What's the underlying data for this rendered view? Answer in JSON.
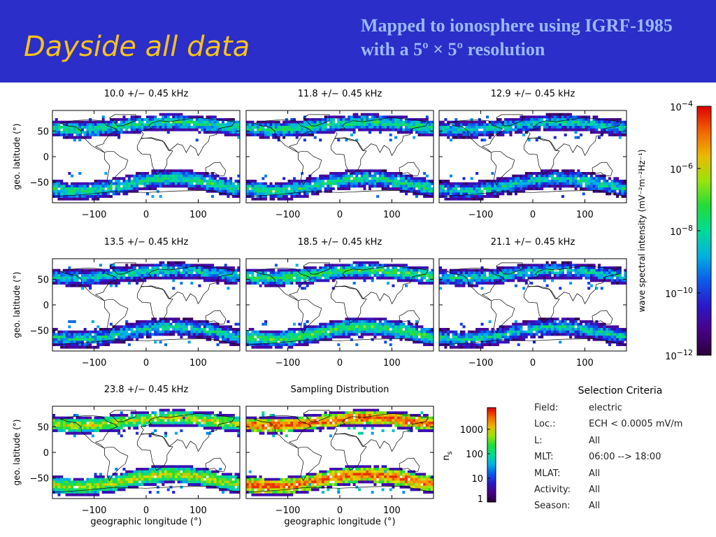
{
  "header": {
    "title": "Dayside all data",
    "subtitle": "Mapped to ionosphere using IGRF-1985 with a 5º × 5º resolution"
  },
  "colors": {
    "header_bg": "#2b2ec8",
    "title": "#f6c21a",
    "subtitle": "#9db8ff"
  },
  "axes": {
    "ylabel": "geo. latitude (°)",
    "xlabel": "geographic longitude (°)",
    "xticks": [
      "−100",
      "0",
      "100"
    ],
    "yticks": [
      "50",
      "0",
      "−50"
    ]
  },
  "chart_data": [
    {
      "type": "heatmap",
      "title": "10.0 +/− 0.45 kHz",
      "xlim": [
        -180,
        180
      ],
      "ylim": [
        -90,
        90
      ],
      "bands": [
        {
          "lat_range": [
            -90,
            -40
          ],
          "peak": "zone"
        },
        {
          "lat_range": [
            40,
            75
          ]
        }
      ],
      "peak_level": 0.55
    },
    {
      "type": "heatmap",
      "title": "11.8 +/− 0.45 kHz",
      "xlim": [
        -180,
        180
      ],
      "ylim": [
        -90,
        90
      ],
      "peak_level": 0.55
    },
    {
      "type": "heatmap",
      "title": "12.9 +/− 0.45 kHz",
      "xlim": [
        -180,
        180
      ],
      "ylim": [
        -90,
        90
      ],
      "peak_level": 0.5
    },
    {
      "type": "heatmap",
      "title": "13.5 +/− 0.45 kHz",
      "xlim": [
        -180,
        180
      ],
      "ylim": [
        -90,
        90
      ],
      "peak_level": 0.5
    },
    {
      "type": "heatmap",
      "title": "18.5 +/− 0.45 kHz",
      "xlim": [
        -180,
        180
      ],
      "ylim": [
        -90,
        90
      ],
      "peak_level": 0.6
    },
    {
      "type": "heatmap",
      "title": "21.1 +/− 0.45 kHz",
      "xlim": [
        -180,
        180
      ],
      "ylim": [
        -90,
        90
      ],
      "peak_level": 0.5
    },
    {
      "type": "heatmap",
      "title": "23.8 +/− 0.45 kHz",
      "xlim": [
        -180,
        180
      ],
      "ylim": [
        -90,
        90
      ],
      "peak_level": 0.75
    },
    {
      "type": "heatmap",
      "title": "Sampling Distribution",
      "xlim": [
        -180,
        180
      ],
      "ylim": [
        -90,
        90
      ],
      "peak_level": 0.8
    }
  ],
  "colorbar_intensity": {
    "label": "wave spectral intensity (mV⁻²m⁻²Hz⁻¹)",
    "ticks": [
      {
        "base": "10",
        "exp": "−4"
      },
      {
        "base": "10",
        "exp": "−6"
      },
      {
        "base": "10",
        "exp": "−8"
      },
      {
        "base": "10",
        "exp": "−10"
      },
      {
        "base": "10",
        "exp": "−12"
      }
    ],
    "range_log10": [
      -12,
      -4
    ]
  },
  "colorbar_samples": {
    "label": "n",
    "label_sub": "s",
    "ticks": [
      "1000",
      "100",
      "10",
      "1"
    ]
  },
  "selection": {
    "title": "Selection Criteria",
    "rows": [
      {
        "key": "Field:",
        "value": "electric"
      },
      {
        "key": "Loc.:",
        "value": "ECH < 0.0005 mV/m"
      },
      {
        "key": "L:",
        "value": "All"
      },
      {
        "key": "MLT:",
        "value": "06:00 --> 18:00"
      },
      {
        "key": "MLAT:",
        "value": "All"
      },
      {
        "key": "Activity:",
        "value": "All"
      },
      {
        "key": "Season:",
        "value": "All"
      }
    ]
  }
}
